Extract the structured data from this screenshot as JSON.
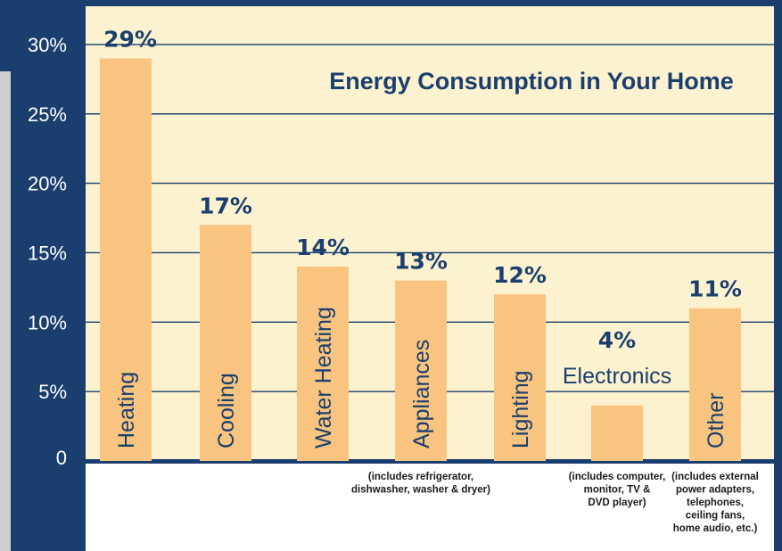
{
  "chart_data": {
    "type": "bar",
    "title": "Energy Consumption in Your Home",
    "categories": [
      "Heating",
      "Cooling",
      "Water Heating",
      "Appliances",
      "Lighting",
      "Electronics",
      "Other"
    ],
    "values": [
      29,
      17,
      14,
      13,
      12,
      4,
      11
    ],
    "value_labels": [
      "29%",
      "17%",
      "14%",
      "13%",
      "12%",
      "4%",
      "11%"
    ],
    "notes": [
      [],
      [],
      [],
      [
        "(includes refrigerator,",
        "dishwasher, washer & dryer)"
      ],
      [],
      [
        "(includes computer,",
        "monitor, TV &",
        "DVD player)"
      ],
      [
        "(includes external",
        "power adapters,",
        "telephones,",
        "ceiling fans,",
        "home audio, etc.)"
      ]
    ],
    "y_ticks": [
      "0",
      "5%",
      "10%",
      "15%",
      "20%",
      "25%",
      "30%"
    ],
    "ylim": [
      0,
      32
    ],
    "grid": true,
    "xlabel": "",
    "ylabel": "",
    "colors": {
      "bar": "#f9c47f",
      "plot_bg": "#fdf2cf",
      "axis_panel": "#1a3f6e",
      "text": "#1a3f6e",
      "grid": "#1a3f6e",
      "side_strip": "#cfcfcf"
    }
  }
}
